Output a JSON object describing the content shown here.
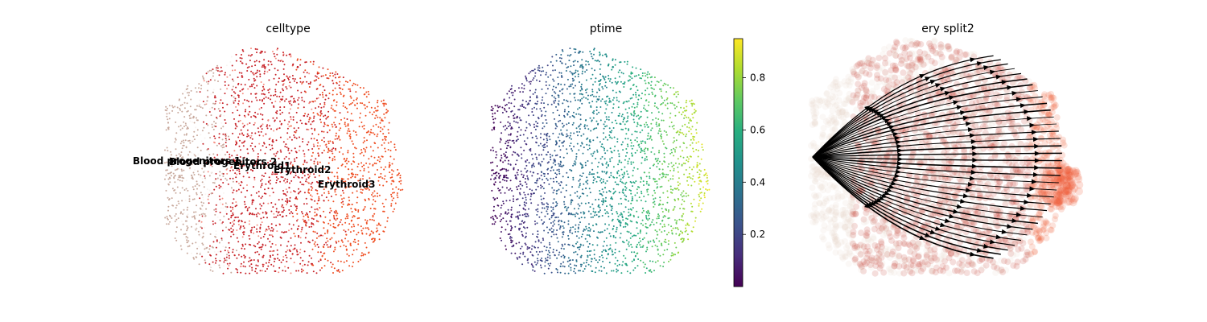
{
  "chart_data": [
    {
      "type": "scatter",
      "title": "celltype",
      "legend": "on data",
      "series": [
        {
          "name": "Blood progenitors 1",
          "color": "#f9f4f1"
        },
        {
          "name": "Blood progenitors 2",
          "color": "#c9aa9e"
        },
        {
          "name": "Erythroid1",
          "color": "#c72228"
        },
        {
          "name": "Erythroid2",
          "color": "#f79083"
        },
        {
          "name": "Erythroid3",
          "color": "#ef4e22"
        }
      ]
    },
    {
      "type": "scatter",
      "title": "ptime",
      "colormap": "viridis",
      "colorbar": {
        "range": [
          0.0,
          0.95
        ],
        "ticks": [
          "0.2",
          "0.4",
          "0.6",
          "0.8"
        ]
      }
    },
    {
      "type": "scatter",
      "title": "ery split2",
      "overlay": "velocity streamlines",
      "point_colors": [
        "#e8d8cc",
        "#c9463d",
        "#ef5f3a"
      ],
      "stream_color": "#000000"
    }
  ]
}
